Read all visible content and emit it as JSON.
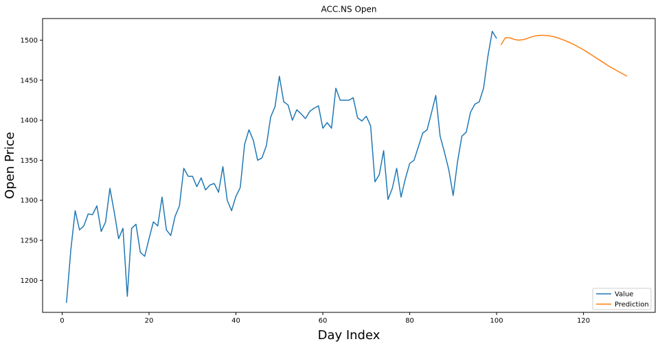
{
  "chart_data": {
    "type": "line",
    "title": "ACC.NS Open",
    "xlabel": "Day Index",
    "ylabel": "Open Price",
    "xlim": [
      -4.5,
      136.5
    ],
    "ylim": [
      1160,
      1527
    ],
    "xticks": [
      0,
      20,
      40,
      60,
      80,
      100,
      120
    ],
    "yticks": [
      1200,
      1250,
      1300,
      1350,
      1400,
      1450,
      1500
    ],
    "grid": false,
    "legend": "lower-right",
    "series": [
      {
        "name": "Value",
        "color": "#1f77b4",
        "x": [
          1,
          2,
          3,
          4,
          5,
          6,
          7,
          8,
          9,
          10,
          11,
          12,
          13,
          14,
          15,
          16,
          17,
          18,
          19,
          20,
          21,
          22,
          23,
          24,
          25,
          26,
          27,
          28,
          29,
          30,
          31,
          32,
          33,
          34,
          35,
          36,
          37,
          38,
          39,
          40,
          41,
          42,
          43,
          44,
          45,
          46,
          47,
          48,
          49,
          50,
          51,
          52,
          53,
          54,
          55,
          56,
          57,
          58,
          59,
          60,
          61,
          62,
          63,
          64,
          65,
          66,
          67,
          68,
          69,
          70,
          71,
          72,
          73,
          74,
          75,
          76,
          77,
          78,
          79,
          80,
          81,
          82,
          83,
          84,
          85,
          86,
          87,
          88,
          89,
          90,
          91,
          92,
          93,
          94,
          95,
          96,
          97,
          98,
          99,
          100
        ],
        "y": [
          1172,
          1238,
          1287,
          1263,
          1268,
          1283,
          1282,
          1293,
          1261,
          1273,
          1315,
          1285,
          1252,
          1265,
          1180,
          1265,
          1270,
          1235,
          1230,
          1252,
          1273,
          1268,
          1304,
          1263,
          1256,
          1280,
          1293,
          1340,
          1330,
          1330,
          1317,
          1328,
          1313,
          1319,
          1321,
          1310,
          1342,
          1300,
          1287,
          1305,
          1316,
          1370,
          1388,
          1375,
          1350,
          1353,
          1368,
          1404,
          1417,
          1455,
          1423,
          1419,
          1400,
          1413,
          1408,
          1402,
          1411,
          1415,
          1418,
          1390,
          1397,
          1390,
          1440,
          1425,
          1425,
          1425,
          1428,
          1403,
          1399,
          1405,
          1393,
          1323,
          1332,
          1362,
          1301,
          1315,
          1340,
          1304,
          1327,
          1346,
          1350,
          1367,
          1384,
          1388,
          1409,
          1431,
          1380,
          1360,
          1338,
          1306,
          1348,
          1380,
          1385,
          1410,
          1420,
          1423,
          1440,
          1480,
          1511,
          1502
        ]
      },
      {
        "name": "Prediction",
        "color": "#ff7f0e",
        "x": [
          101,
          102,
          103,
          104,
          105,
          106,
          107,
          108,
          109,
          110,
          111,
          112,
          113,
          114,
          115,
          116,
          117,
          118,
          119,
          120,
          121,
          122,
          123,
          124,
          125,
          126,
          127,
          128,
          129,
          130
        ],
        "y": [
          1494,
          1503,
          1503,
          1501,
          1500,
          1500.5,
          1502,
          1504,
          1505.5,
          1506,
          1506,
          1505.5,
          1504.5,
          1503,
          1501,
          1499,
          1496.5,
          1494,
          1491,
          1488,
          1484.5,
          1481,
          1477.5,
          1474,
          1470.5,
          1467,
          1464,
          1461,
          1458,
          1455
        ]
      }
    ]
  }
}
